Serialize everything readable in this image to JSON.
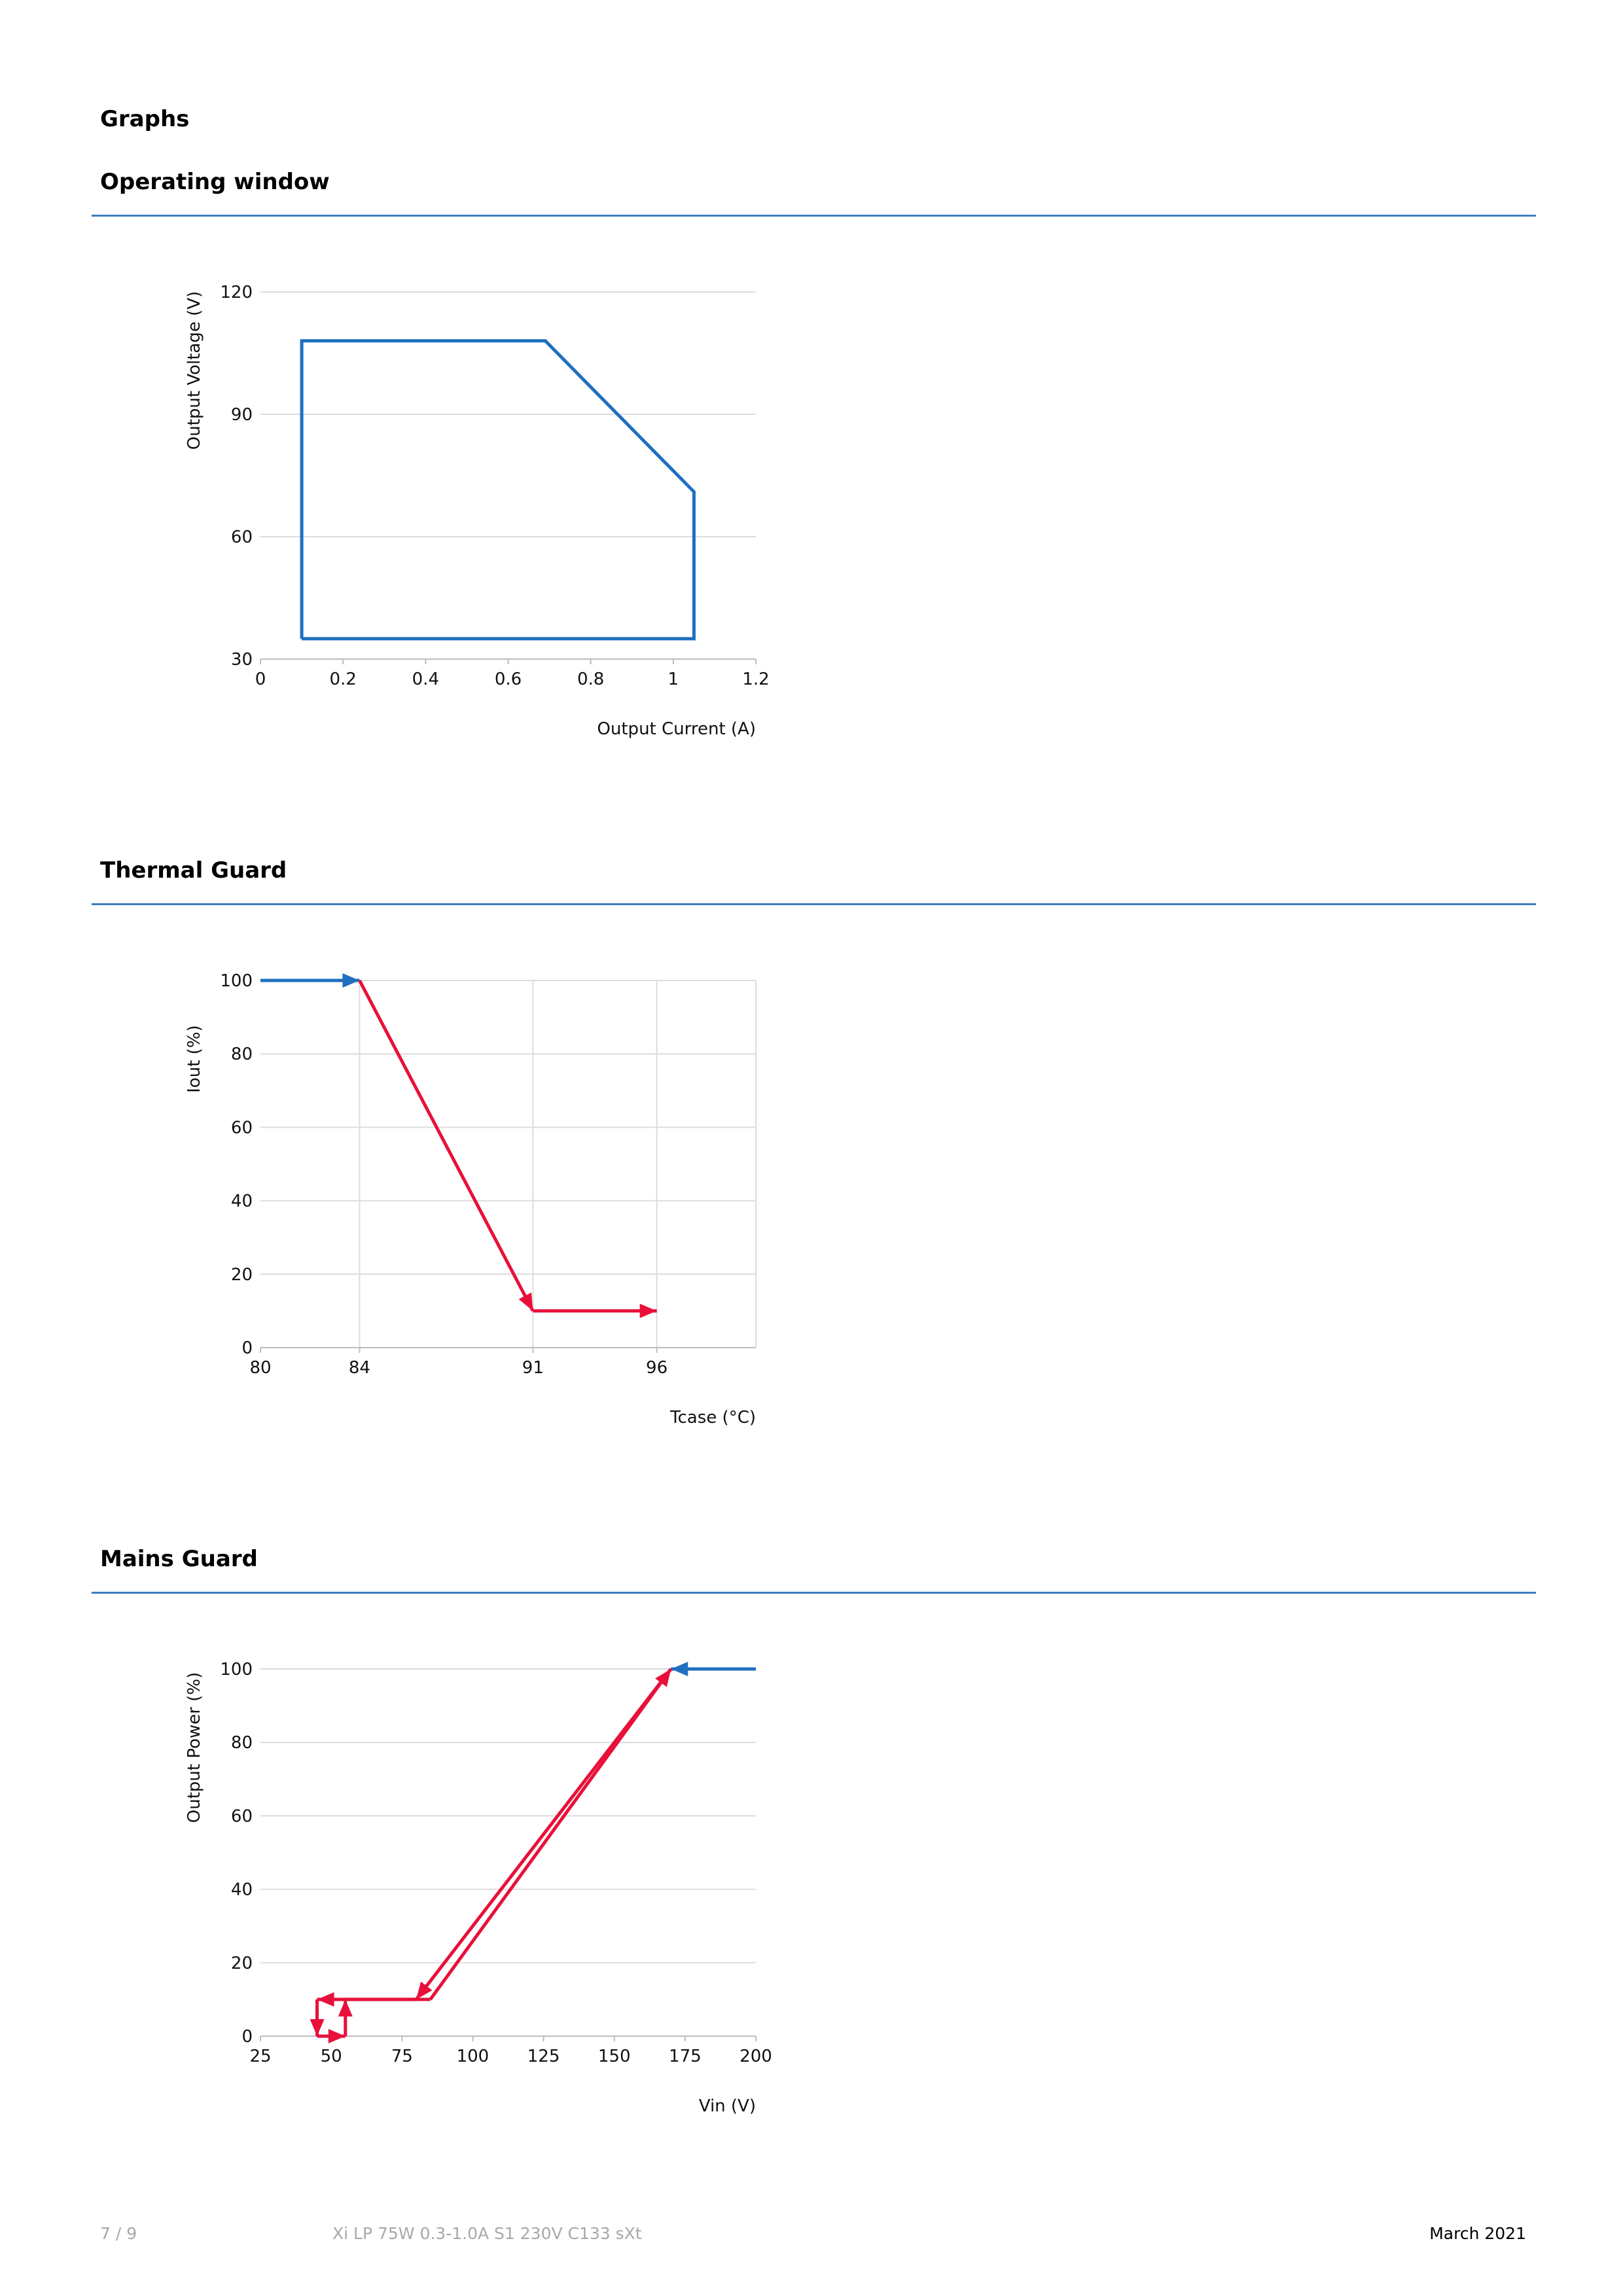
{
  "page": {
    "heading": "Graphs"
  },
  "sections": {
    "operating_window": {
      "title": "Operating window"
    },
    "thermal_guard": {
      "title": "Thermal Guard"
    },
    "mains_guard": {
      "title": "Mains Guard"
    }
  },
  "chart_data": [
    {
      "id": "operating-window",
      "type": "line",
      "xlabel": "Output Current (A)",
      "ylabel": "Output Voltage (V)",
      "xlim": [
        0,
        1.2
      ],
      "ylim": [
        30,
        120
      ],
      "xticks": [
        0,
        0.2,
        0.4,
        0.6,
        0.8,
        1,
        1.2
      ],
      "xtick_labels": [
        "0",
        "0.2",
        "0.4",
        "0.6",
        "0.8",
        "1",
        "1.2"
      ],
      "yticks": [
        30,
        60,
        90,
        120
      ],
      "ytick_labels": [
        "30",
        "60",
        "90",
        "120"
      ],
      "grid": "horizontal",
      "series": [
        {
          "color": "#1f6fbf",
          "points": [
            [
              0.1,
              35
            ],
            [
              0.1,
              108
            ],
            [
              0.69,
              108
            ],
            [
              1.05,
              71
            ],
            [
              1.05,
              35
            ],
            [
              0.1,
              35
            ]
          ]
        }
      ]
    },
    {
      "id": "thermal-guard",
      "type": "line",
      "xlabel": "Tcase (°C)",
      "ylabel": "Iout (%)",
      "xticks": [
        80,
        84,
        91,
        96
      ],
      "xtick_labels": [
        "80",
        "84",
        "91",
        "96"
      ],
      "x_tick_slots": [
        0,
        1,
        2.75,
        4
      ],
      "xlim_slots": [
        0,
        5
      ],
      "ylim": [
        0,
        100
      ],
      "yticks": [
        0,
        20,
        40,
        60,
        80,
        100
      ],
      "ytick_labels": [
        "0",
        "20",
        "40",
        "60",
        "80",
        "100"
      ],
      "grid": "both",
      "series": [
        {
          "color": "#1f6fbf",
          "arrow": "end",
          "points": [
            [
              80,
              100
            ],
            [
              84,
              100
            ]
          ]
        },
        {
          "color": "#e8103a",
          "arrow": "end",
          "points": [
            [
              84,
              100
            ],
            [
              91,
              10
            ]
          ]
        },
        {
          "color": "#e8103a",
          "arrow": "end",
          "points": [
            [
              91,
              10
            ],
            [
              96,
              10
            ]
          ]
        }
      ]
    },
    {
      "id": "mains-guard",
      "type": "line",
      "xlabel": "Vin (V)",
      "ylabel": "Output Power (%)",
      "xlim": [
        25,
        200
      ],
      "ylim": [
        0,
        100
      ],
      "xticks": [
        25,
        50,
        75,
        100,
        125,
        150,
        175,
        200
      ],
      "xtick_labels": [
        "25",
        "50",
        "75",
        "100",
        "125",
        "150",
        "175",
        "200"
      ],
      "yticks": [
        0,
        20,
        40,
        60,
        80,
        100
      ],
      "ytick_labels": [
        "0",
        "20",
        "40",
        "60",
        "80",
        "100"
      ],
      "grid": "horizontal",
      "series": [
        {
          "color": "#1f6fbf",
          "arrow": "end",
          "points": [
            [
              200,
              100
            ],
            [
              170,
              100
            ]
          ]
        },
        {
          "color": "#e8103a",
          "arrow": "end",
          "points": [
            [
              170,
              100
            ],
            [
              80,
              10
            ]
          ]
        },
        {
          "color": "#e8103a",
          "arrow": "end",
          "points": [
            [
              80,
              10
            ],
            [
              45,
              10
            ]
          ]
        },
        {
          "color": "#e8103a",
          "arrow": "end",
          "points": [
            [
              45,
              10
            ],
            [
              45,
              0
            ]
          ]
        },
        {
          "color": "#e8103a",
          "arrow": "end",
          "points": [
            [
              45,
              0
            ],
            [
              55,
              0
            ]
          ]
        },
        {
          "color": "#e8103a",
          "arrow": "end",
          "points": [
            [
              55,
              0
            ],
            [
              55,
              10
            ]
          ]
        },
        {
          "color": "#e8103a",
          "arrow": "none",
          "points": [
            [
              55,
              10
            ],
            [
              85,
              10
            ]
          ]
        },
        {
          "color": "#e8103a",
          "arrow": "end",
          "points": [
            [
              85,
              10
            ],
            [
              170,
              100
            ]
          ]
        }
      ]
    }
  ],
  "footer": {
    "page_number": "7 / 9",
    "product": "Xi LP 75W 0.3-1.0A S1 230V C133 sXt",
    "date": "March 2021"
  }
}
